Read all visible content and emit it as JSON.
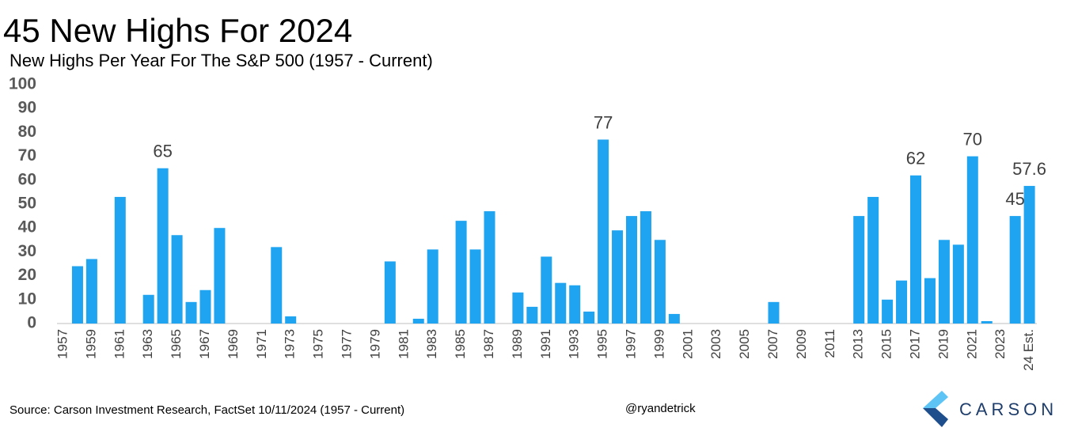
{
  "chart_data": {
    "type": "bar",
    "title": "45 New Highs For 2024",
    "subtitle": "New Highs Per Year For The S&P 500 (1957 - Current)",
    "categories": [
      "1957",
      null,
      "1959",
      null,
      "1961",
      null,
      "1963",
      null,
      "1965",
      null,
      "1967",
      null,
      "1969",
      null,
      "1971",
      null,
      "1973",
      null,
      "1975",
      null,
      "1977",
      null,
      "1979",
      null,
      "1981",
      null,
      "1983",
      null,
      "1985",
      null,
      "1987",
      null,
      "1989",
      null,
      "1991",
      null,
      "1993",
      null,
      "1995",
      null,
      "1997",
      null,
      "1999",
      null,
      "2001",
      null,
      "2003",
      null,
      "2005",
      null,
      "2007",
      null,
      "2009",
      null,
      "2011",
      null,
      "2013",
      null,
      "2015",
      null,
      "2017",
      null,
      "2019",
      null,
      "2021",
      null,
      "2023",
      null,
      "24 Est."
    ],
    "values": [
      0,
      24,
      27,
      0,
      53,
      0,
      12,
      65,
      37,
      9,
      14,
      40,
      0,
      0,
      0,
      32,
      3,
      0,
      0,
      0,
      0,
      0,
      0,
      26,
      0,
      2,
      31,
      0,
      43,
      31,
      47,
      0,
      13,
      7,
      28,
      17,
      16,
      5,
      77,
      39,
      45,
      47,
      35,
      4,
      0,
      0,
      0,
      0,
      0,
      0,
      9,
      0,
      0,
      0,
      0,
      0,
      45,
      53,
      10,
      18,
      62,
      19,
      35,
      33,
      70,
      1,
      0,
      45,
      57.6
    ],
    "value_labels": [
      null,
      null,
      null,
      null,
      null,
      null,
      null,
      "65",
      null,
      null,
      null,
      null,
      null,
      null,
      null,
      null,
      null,
      null,
      null,
      null,
      null,
      null,
      null,
      null,
      null,
      null,
      null,
      null,
      null,
      null,
      null,
      null,
      null,
      null,
      null,
      null,
      null,
      null,
      "77",
      null,
      null,
      null,
      null,
      null,
      null,
      null,
      null,
      null,
      null,
      null,
      null,
      null,
      null,
      null,
      null,
      null,
      null,
      null,
      null,
      null,
      "62",
      null,
      null,
      null,
      "70",
      null,
      null,
      "45",
      "57.6"
    ],
    "color": "#1ea4f0",
    "ylim": [
      0,
      100
    ],
    "yticks": [
      0,
      10,
      20,
      30,
      40,
      50,
      60,
      70,
      80,
      90,
      100
    ],
    "grid": false,
    "source": "Source: Carson Investment Research, FactSet 10/11/2024 (1957 - Current)",
    "handle": "@ryandetrick",
    "logo": "CARSON"
  }
}
